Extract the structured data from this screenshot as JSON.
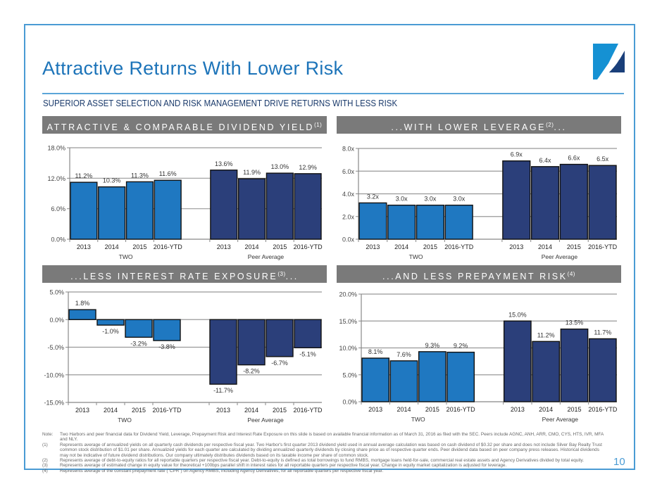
{
  "header": {
    "title": "Attractive Returns With Lower Risk",
    "subtitle": "SUPERIOR ASSET SELECTION AND RISK MANAGEMENT DRIVE RETURNS WITH LESS RISK",
    "logo": "two-harbors-logo"
  },
  "colors": {
    "frame": "#4a9bd4",
    "title": "#1d74b9",
    "two_bar": "#1f78c1",
    "peer_bar": "#2b3f7a",
    "panel_header": "#7a7a7a",
    "gridline": "#999999"
  },
  "panels": [
    {
      "title": "ATTRACTIVE & COMPARABLE DIVIDEND YIELD",
      "footnote_ref": "(1)",
      "suffix": ""
    },
    {
      "title": "...WITH LOWER LEVERAGE",
      "footnote_ref": "(2)",
      "suffix": "..."
    },
    {
      "title": "...LESS INTEREST RATE EXPOSURE",
      "footnote_ref": "(3)",
      "suffix": "..."
    },
    {
      "title": "...AND LESS PREPAYMENT RISK",
      "footnote_ref": "(4)",
      "suffix": ""
    }
  ],
  "chart_data": [
    {
      "type": "bar",
      "title": "ATTRACTIVE & COMPARABLE DIVIDEND YIELD(1)",
      "categories": [
        "2013",
        "2014",
        "2015",
        "2016-YTD"
      ],
      "groups": [
        "TWO",
        "Peer Average"
      ],
      "series": [
        {
          "name": "TWO",
          "values": [
            11.2,
            10.3,
            11.3,
            11.6
          ],
          "labels": [
            "11.2%",
            "10.3%",
            "11.3%",
            "11.6%"
          ]
        },
        {
          "name": "Peer Average",
          "values": [
            13.6,
            11.9,
            13.0,
            12.9
          ],
          "labels": [
            "13.6%",
            "11.9%",
            "13.0%",
            "12.9%"
          ]
        }
      ],
      "yticks": [
        0,
        6,
        12,
        18
      ],
      "ytick_labels": [
        "0.0%",
        "6.0%",
        "12.0%",
        "18.0%"
      ],
      "ylim": [
        0,
        18
      ],
      "xlabel": "",
      "ylabel": "",
      "grid": true,
      "legend": "none"
    },
    {
      "type": "bar",
      "title": "...WITH LOWER LEVERAGE(2)...",
      "categories": [
        "2013",
        "2014",
        "2015",
        "2016-YTD"
      ],
      "groups": [
        "TWO",
        "Peer Average"
      ],
      "series": [
        {
          "name": "TWO",
          "values": [
            3.2,
            3.0,
            3.0,
            3.0
          ],
          "labels": [
            "3.2x",
            "3.0x",
            "3.0x",
            "3.0x"
          ]
        },
        {
          "name": "Peer Average",
          "values": [
            6.9,
            6.4,
            6.6,
            6.5
          ],
          "labels": [
            "6.9x",
            "6.4x",
            "6.6x",
            "6.5x"
          ]
        }
      ],
      "yticks": [
        0,
        2,
        4,
        6,
        8
      ],
      "ytick_labels": [
        "0.0x",
        "2.0x",
        "4.0x",
        "6.0x",
        "8.0x"
      ],
      "ylim": [
        0,
        8
      ],
      "xlabel": "",
      "ylabel": "",
      "grid": true,
      "legend": "none"
    },
    {
      "type": "bar",
      "title": "...LESS INTEREST RATE EXPOSURE(3)...",
      "categories": [
        "2013",
        "2014",
        "2015",
        "2016-YTD"
      ],
      "groups": [
        "TWO",
        "Peer Average"
      ],
      "series": [
        {
          "name": "TWO",
          "values": [
            1.8,
            -1.0,
            -3.2,
            -3.8
          ],
          "labels": [
            "1.8%",
            "-1.0%",
            "-3.2%",
            "-3.8%"
          ]
        },
        {
          "name": "Peer Average",
          "values": [
            -11.7,
            -8.2,
            -6.7,
            -5.1
          ],
          "labels": [
            "-11.7%",
            "-8.2%",
            "-6.7%",
            "-5.1%"
          ]
        }
      ],
      "yticks": [
        -15,
        -10,
        -5,
        0,
        5
      ],
      "ytick_labels": [
        "-15.0%",
        "-10.0%",
        "-5.0%",
        "0.0%",
        "5.0%"
      ],
      "ylim": [
        -15,
        5
      ],
      "xlabel": "",
      "ylabel": "",
      "grid": true,
      "legend": "none"
    },
    {
      "type": "bar",
      "title": "...AND LESS PREPAYMENT RISK(4)",
      "categories": [
        "2013",
        "2014",
        "2015",
        "2016-YTD"
      ],
      "groups": [
        "TWO",
        "Peer Average"
      ],
      "series": [
        {
          "name": "TWO",
          "values": [
            8.1,
            7.6,
            9.3,
            9.2
          ],
          "labels": [
            "8.1%",
            "7.6%",
            "9.3%",
            "9.2%"
          ]
        },
        {
          "name": "Peer Average",
          "values": [
            15.0,
            11.2,
            13.5,
            11.7
          ],
          "labels": [
            "15.0%",
            "11.2%",
            "13.5%",
            "11.7%"
          ]
        }
      ],
      "yticks": [
        0,
        5,
        10,
        15,
        20
      ],
      "ytick_labels": [
        "0.0%",
        "5.0%",
        "10.0%",
        "15.0%",
        "20.0%"
      ],
      "ylim": [
        0,
        20
      ],
      "xlabel": "",
      "ylabel": "",
      "grid": true,
      "legend": "none"
    }
  ],
  "footnotes": [
    {
      "key": "Note:",
      "text": "Two Harbors and peer financial data for Dividend Yield, Leverage, Prepayment Risk and Interest Rate Exposure on this slide is based on available financial information as of March 31, 2016 as filed with the SEC.   Peers include AGNC, ANH, ARR, CMO, CYS, HTS, IVR, MFA and NLY."
    },
    {
      "key": "(1)",
      "text": "Represents average of annualized yields on all quarterly cash dividends per respective fiscal year.  Two Harbor's first quarter 2013 dividend yield used in annual average calculation was based on cash dividend of $0.32 per share and does not include Silver Bay Realty Trust common stock distribution of $1.01 per share.  Annualized yields for each quarter are calculated by dividing annualized quarterly dividends by closing share price as of respective quarter ends. Peer dividend data based on peer company press releases. Historical dividends may not be indicative of future dividend distributions. Our company ultimately distributes dividends based on its taxable income per share of common stock."
    },
    {
      "key": "(2)",
      "text": "Represents average of debt-to-equity ratios for all reportable quarters per respective fiscal year.  Debt-to-equity is defined as total borrowings to fund RMBS, mortgage loans held-for-sale, commercial real estate assets and Agency Derivatives divided by total equity."
    },
    {
      "key": "(3)",
      "text": "Represents average of estimated change in equity value for theoretical +100bps parallel shift in interest rates for all reportable quarters per respective fiscal year. Change in equity market capitalization is adjusted for leverage."
    },
    {
      "key": "(4)",
      "text": "Represents average of the constant prepayment rate (\"CPR\") on Agency RMBS, including Agency Derivatives, for all reportable quarters per respective fiscal year."
    }
  ],
  "page_number": "10"
}
